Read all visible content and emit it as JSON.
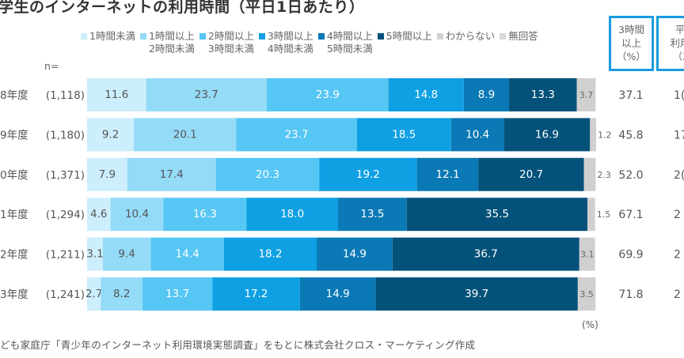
{
  "title": "学生のインターネットの利用時間（平日1日あたり）",
  "n_label": "n=",
  "unit_label": "(%)",
  "source": "ども家庭庁「青少年のインターネット利用環境実態調査」をもとに株式会社クロス・マーケティング作成",
  "column_headers": {
    "three_hours_plus": [
      "3時間",
      "以上",
      "（%）"
    ],
    "average_minutes_partial": [
      "平",
      "利用",
      "（ｽ"
    ]
  },
  "chart_data": {
    "type": "bar",
    "orientation": "horizontal",
    "stacked": true,
    "percent_stacked": true,
    "title": "学生のインターネットの利用時間（平日1日あたり）",
    "xlabel": "",
    "ylabel": "",
    "unit": "%",
    "xlim": [
      0,
      100
    ],
    "grid": false,
    "legend_position": "top",
    "categories": [
      "8年度",
      "9年度",
      "0年度",
      "1年度",
      "2年度",
      "3年度"
    ],
    "sample_sizes": [
      "(1,118)",
      "(1,180)",
      "(1,371)",
      "(1,294)",
      "(1,211)",
      "(1,241)"
    ],
    "series": [
      {
        "name": "1時間未満",
        "legend_lines": [
          "1時間未満"
        ],
        "color": "#cdeefc",
        "label_color": "#555555",
        "values": [
          11.6,
          9.2,
          7.9,
          4.6,
          3.1,
          2.7
        ]
      },
      {
        "name": "1時間以上2時間未満",
        "legend_lines": [
          "1時間以上",
          "2時間未満"
        ],
        "color": "#94dbf8",
        "label_color": "#555555",
        "values": [
          23.7,
          20.1,
          17.4,
          10.4,
          9.4,
          8.2
        ]
      },
      {
        "name": "2時間以上3時間未満",
        "legend_lines": [
          "2時間以上",
          "3時間未満"
        ],
        "color": "#56c6f4",
        "label_color": "#ffffff",
        "values": [
          23.9,
          23.7,
          20.3,
          16.3,
          14.4,
          13.7
        ]
      },
      {
        "name": "3時間以上4時間未満",
        "legend_lines": [
          "3時間以上",
          "4時間未満"
        ],
        "color": "#0ea0e3",
        "label_color": "#ffffff",
        "values": [
          14.8,
          18.5,
          19.2,
          18.0,
          18.2,
          17.2
        ]
      },
      {
        "name": "4時間以上5時間未満",
        "legend_lines": [
          "4時間以上",
          "5時間未満"
        ],
        "color": "#0b79b5",
        "label_color": "#ffffff",
        "values": [
          8.9,
          10.4,
          12.1,
          13.5,
          14.9,
          14.9
        ]
      },
      {
        "name": "5時間以上",
        "legend_lines": [
          "5時間以上"
        ],
        "color": "#04527a",
        "label_color": "#ffffff",
        "values": [
          13.3,
          16.9,
          20.7,
          35.5,
          36.7,
          39.7
        ]
      },
      {
        "name": "わからない",
        "legend_lines": [
          "わからない"
        ],
        "color": "#d0d0d0",
        "label_color": "#666666",
        "values": [
          3.7,
          1.2,
          2.3,
          1.5,
          3.1,
          3.5
        ]
      },
      {
        "name": "無回答",
        "legend_lines": [
          "無回答"
        ],
        "color": "#d8d8d8",
        "label_color": "#666666",
        "values": [
          0,
          0,
          0,
          0,
          0,
          0
        ]
      }
    ],
    "side_table": {
      "three_hours_plus_pct": [
        "37.1",
        "45.8",
        "52.0",
        "67.1",
        "69.9",
        "71.8"
      ],
      "average_minutes_partial": [
        "1(",
        "17",
        "2(",
        "2",
        "2",
        "2"
      ]
    }
  }
}
